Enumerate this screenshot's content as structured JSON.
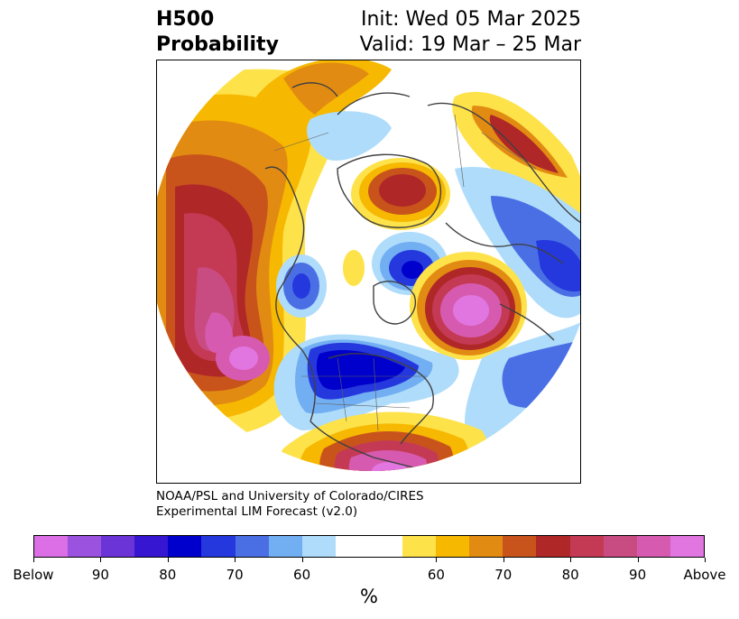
{
  "title": {
    "variable": "H500",
    "subtitle": "Probability",
    "init": "Init: Wed 05 Mar 2025",
    "valid": "Valid: 19 Mar – 25 Mar"
  },
  "credit": {
    "line1": "NOAA/PSL and University of Colorado/CIRES",
    "line2": "Experimental LIM Forecast (v2.0)"
  },
  "colorbar": {
    "colors": [
      "#dc6fe6",
      "#9a52df",
      "#6a34d6",
      "#3616d1",
      "#0000cc",
      "#2438dd",
      "#4a6fe5",
      "#72aef2",
      "#aedcfa",
      "#ffffff",
      "#ffffff",
      "#fee24a",
      "#f6b800",
      "#e28b12",
      "#c8541c",
      "#b02727",
      "#c43a55",
      "#c84b81",
      "#d65bb0",
      "#e176e1"
    ],
    "ticks": [
      "Below",
      "90",
      "80",
      "70",
      "60",
      "60",
      "70",
      "80",
      "90",
      "Above"
    ],
    "unit": "%"
  },
  "map": {
    "features": [
      "above-normal anomaly over western North America / NE Pacific",
      "above-normal anomaly over Greenland",
      "above-normal anomaly over North Atlantic",
      "above-normal anomaly over Gulf of Mexico / Caribbean",
      "below-normal anomaly over central & eastern United States",
      "below-normal anomaly over Labrador / Baffin",
      "above-normal anomaly over Siberia"
    ]
  }
}
